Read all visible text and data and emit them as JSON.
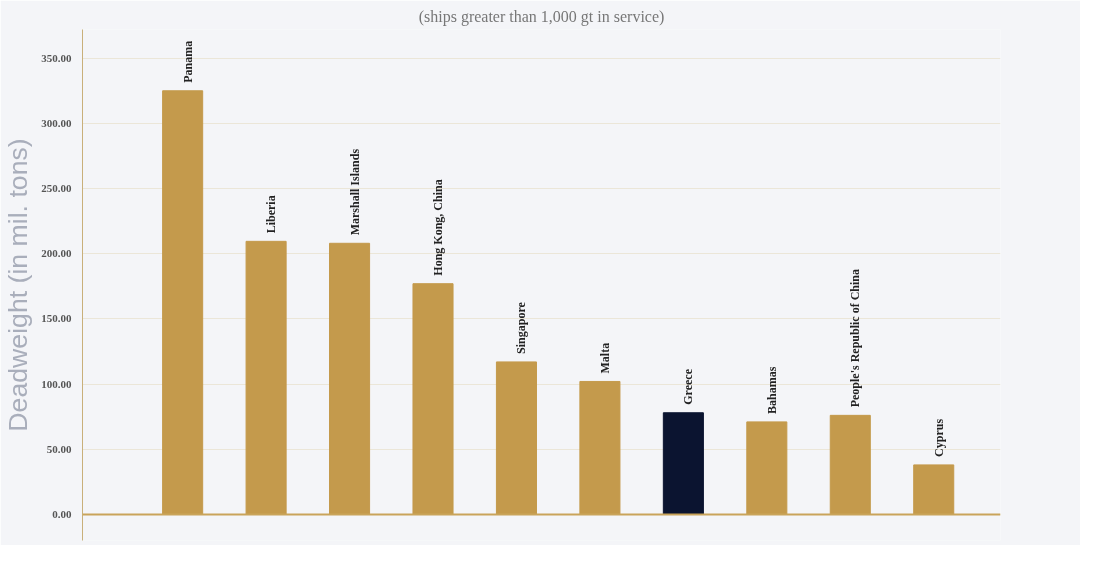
{
  "chart_data": {
    "type": "bar",
    "title": "(ships greater than 1,000 gt in service)",
    "ylabel": "Deadweight (in mil. tons)",
    "categories": [
      "Panama",
      "Liberia",
      "Marshall Islands",
      "Hong Kong, China",
      "Singapore",
      "Malta",
      "Greece",
      "Bahamas",
      "People's Republic of China",
      "Cyprus"
    ],
    "values": [
      325,
      209.5,
      208,
      177,
      117,
      102,
      78,
      71,
      76,
      38
    ],
    "colors": [
      "#c49a4c",
      "#c49a4c",
      "#c49a4c",
      "#c49a4c",
      "#c49a4c",
      "#c49a4c",
      "#0b1430",
      "#c49a4c",
      "#c49a4c",
      "#c49a4c"
    ],
    "ylim": [
      -20,
      372
    ],
    "ref_lines": [
      {
        "axis": "y",
        "value": 0,
        "color": "#c9a45a"
      }
    ],
    "yticks": [
      {
        "value": 0,
        "label": "0.00"
      },
      {
        "value": 50,
        "label": "50.00"
      },
      {
        "value": 100,
        "label": "100.00"
      },
      {
        "value": 150,
        "label": "150.00"
      },
      {
        "value": 200,
        "label": "200.00"
      },
      {
        "value": 250,
        "label": "250.00"
      },
      {
        "value": 300,
        "label": "300.00"
      },
      {
        "value": 350,
        "label": "350.00"
      }
    ],
    "grid": "y",
    "tick_labels": "y"
  }
}
